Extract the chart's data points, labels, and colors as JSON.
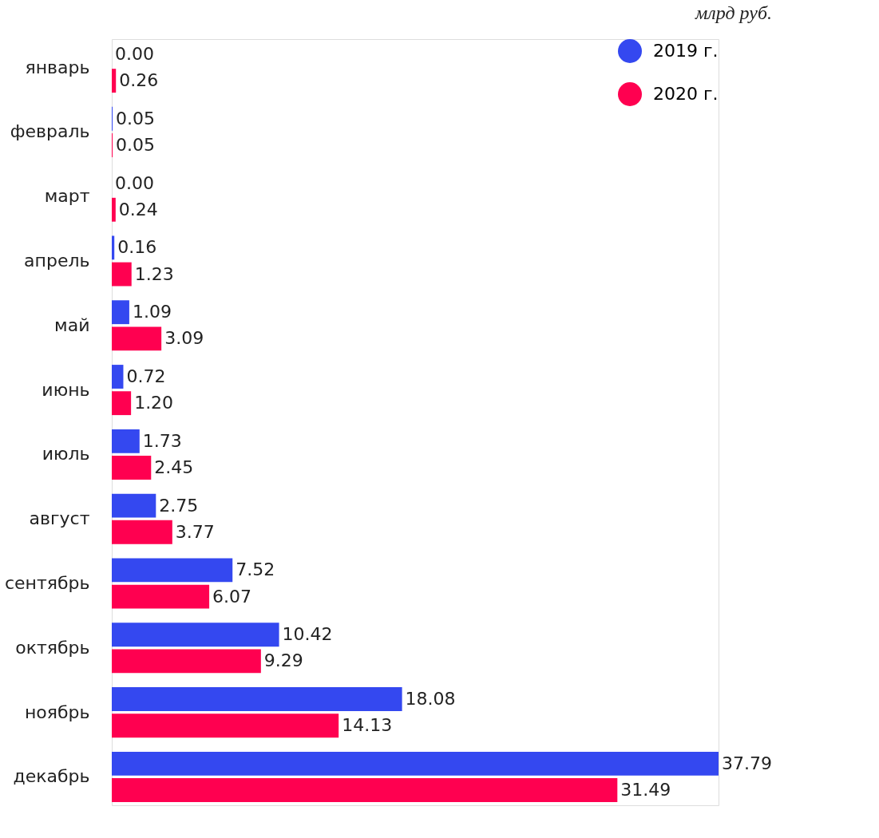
{
  "chart_data": {
    "type": "bar",
    "orientation": "horizontal",
    "categories": [
      "январь",
      "февраль",
      "март",
      "апрель",
      "май",
      "июнь",
      "июль",
      "август",
      "сентябрь",
      "октябрь",
      "ноябрь",
      "декабрь"
    ],
    "series": [
      {
        "name": "2019 г.",
        "color": "#3448f0",
        "values": [
          0.0,
          0.05,
          0.0,
          0.16,
          1.09,
          0.72,
          1.73,
          2.75,
          7.52,
          10.42,
          18.08,
          37.79
        ],
        "value_labels": [
          "0.00",
          "0.05",
          "0.00",
          "0.16",
          "1.09",
          "0.72",
          "1.73",
          "2.75",
          "7.52",
          "10.42",
          "18.08",
          "37.79"
        ]
      },
      {
        "name": "2020 г.",
        "color": "#ff0050",
        "values": [
          0.26,
          0.05,
          0.24,
          1.23,
          3.09,
          1.2,
          2.45,
          3.77,
          6.07,
          9.29,
          14.13,
          31.49
        ],
        "value_labels": [
          "0.26",
          "0.05",
          "0.24",
          "1.23",
          "3.09",
          "1.20",
          "2.45",
          "3.77",
          "6.07",
          "9.29",
          "14.13",
          "31.49"
        ]
      }
    ],
    "legend": "top right",
    "grid": false,
    "annotations": [
      "млрд руб."
    ]
  }
}
